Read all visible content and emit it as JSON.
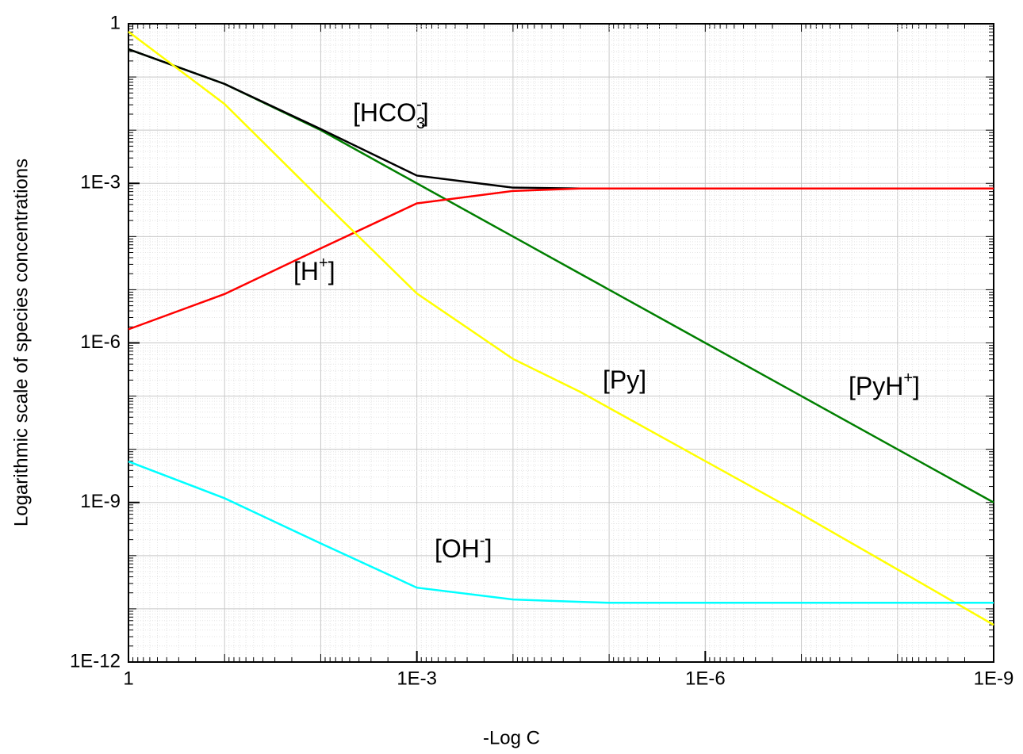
{
  "chart_data": {
    "type": "line",
    "x_label": "-Log C",
    "y_label": "Logarithmic scale of species concentrations",
    "xlog": true,
    "ylog": true,
    "grid": true,
    "xlim": [
      1,
      1e-09
    ],
    "ylim": [
      1,
      1e-12
    ],
    "xticks": [
      1,
      {
        "value": 0.001,
        "label": "1E-3"
      },
      {
        "value": 1e-06,
        "label": "1E-6"
      },
      {
        "value": 1e-09,
        "label": "1E-9"
      }
    ],
    "yticks": [
      1,
      {
        "value": 0.001,
        "label": "1E-3"
      },
      {
        "value": 1e-06,
        "label": "1E-6"
      },
      {
        "value": 1e-09,
        "label": "1E-9"
      },
      {
        "value": 1e-12,
        "label": "1E-12"
      }
    ],
    "x": [
      1,
      0.1,
      0.01,
      0.001,
      0.0001,
      2e-05,
      1e-05,
      1e-06,
      1e-07,
      1e-08,
      1e-09
    ],
    "series": [
      {
        "color": "#007f00",
        "values": [
          0.333,
          0.074,
          0.01,
          0.001,
          0.0001,
          2e-05,
          1e-05,
          1e-06,
          1e-07,
          1e-08,
          1e-09
        ]
      },
      {
        "color": "#000000",
        "values": [
          0.333,
          0.074,
          0.0105,
          0.0014,
          0.00083,
          0.0008,
          null,
          null,
          null,
          null,
          null
        ]
      },
      {
        "color": "#ff0000",
        "values": [
          1.8e-06,
          8.3e-06,
          6e-05,
          0.00042,
          0.00072,
          0.0008,
          0.0008,
          0.0008,
          0.0008,
          0.0008,
          0.0008
        ]
      },
      {
        "color": "#ffff00",
        "values": [
          0.71,
          0.031,
          0.0005,
          8.5e-06,
          5e-07,
          1.2e-07,
          6e-08,
          6e-09,
          6e-10,
          5.5e-11,
          5e-12
        ]
      },
      {
        "color": "#00ffff",
        "values": [
          5.9e-09,
          1.2e-09,
          1.7e-10,
          2.5e-11,
          1.5e-11,
          1.35e-11,
          1.3e-11,
          1.3e-11,
          1.3e-11,
          1.3e-11,
          1.3e-11
        ]
      }
    ],
    "annotations": [
      {
        "text": "[HCO",
        "sub": "3",
        "sup": "-",
        "tail": "]",
        "color": "#000000"
      },
      {
        "text": "[H",
        "sup": "+",
        "tail": "]",
        "color": "#ff0000"
      },
      {
        "text": "[Py]",
        "color": "#ffff00"
      },
      {
        "text": "[PyH",
        "sup": "+",
        "tail": "]",
        "color": "#007f00"
      },
      {
        "text": "[OH",
        "sup": "-",
        "tail": "]",
        "color": "#00ffff"
      }
    ]
  }
}
